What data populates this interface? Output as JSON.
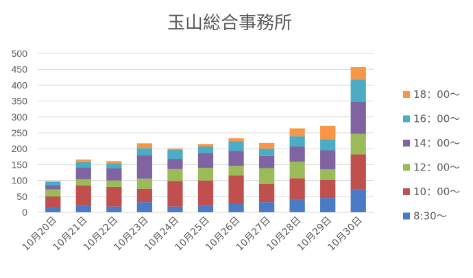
{
  "chart_data": {
    "type": "bar",
    "stacked": true,
    "title": "玉山総合事務所",
    "categories": [
      "10月20日",
      "10月21日",
      "10月22日",
      "10月23日",
      "10月24日",
      "10月25日",
      "10月26日",
      "10月27日",
      "10月28日",
      "10月29日",
      "10月30日"
    ],
    "ylim": [
      0,
      500
    ],
    "yticks": [
      0,
      50,
      100,
      150,
      200,
      250,
      300,
      350,
      400,
      450,
      500
    ],
    "grid": true,
    "legend_position": "right",
    "series": [
      {
        "name": "8:30〜",
        "color": "#4a7bc4",
        "values": [
          15,
          22,
          18,
          32,
          18,
          20,
          28,
          32,
          40,
          45,
          72
        ]
      },
      {
        "name": "10：00〜",
        "color": "#c0504d",
        "values": [
          35,
          62,
          62,
          42,
          80,
          80,
          88,
          57,
          67,
          57,
          110
        ]
      },
      {
        "name": "12：00〜",
        "color": "#9bbb59",
        "values": [
          22,
          20,
          20,
          32,
          38,
          40,
          30,
          50,
          52,
          33,
          65
        ]
      },
      {
        "name": "14：00〜",
        "color": "#8064a2",
        "values": [
          13,
          37,
          38,
          73,
          32,
          47,
          47,
          38,
          48,
          60,
          100
        ]
      },
      {
        "name": "16：00〜",
        "color": "#4bacc6",
        "values": [
          10,
          17,
          15,
          23,
          28,
          20,
          30,
          23,
          32,
          35,
          70
        ]
      },
      {
        "name": "18：00〜",
        "color": "#f79646",
        "values": [
          3,
          8,
          8,
          15,
          5,
          8,
          10,
          18,
          25,
          42,
          40
        ]
      }
    ]
  }
}
